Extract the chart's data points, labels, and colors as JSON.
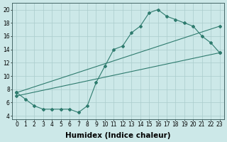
{
  "line1_x": [
    0,
    1,
    2,
    3,
    4,
    5,
    6,
    7,
    8,
    9,
    10,
    11,
    12,
    13,
    14,
    15,
    16,
    17,
    18,
    19,
    20,
    21,
    22,
    23
  ],
  "line1_y": [
    7.5,
    6.5,
    5.5,
    5.0,
    5.0,
    5.0,
    5.0,
    4.5,
    5.5,
    9.0,
    11.5,
    14.0,
    14.5,
    16.5,
    17.5,
    19.5,
    20.0,
    19.0,
    18.5,
    18.0,
    17.5,
    16.0,
    15.0,
    13.5
  ],
  "line2_x": [
    0,
    23
  ],
  "line2_y": [
    7.5,
    17.5
  ],
  "line3_x": [
    0,
    23
  ],
  "line3_y": [
    7.0,
    13.5
  ],
  "color": "#2e7b6e",
  "bg_color": "#cce8e8",
  "grid_color": "#aacccc",
  "xlabel": "Humidex (Indice chaleur)",
  "xlim": [
    -0.5,
    23.5
  ],
  "ylim": [
    3.5,
    21
  ],
  "xticks": [
    0,
    1,
    2,
    3,
    4,
    5,
    6,
    7,
    8,
    9,
    10,
    11,
    12,
    13,
    14,
    15,
    16,
    17,
    18,
    19,
    20,
    21,
    22,
    23
  ],
  "yticks": [
    4,
    6,
    8,
    10,
    12,
    14,
    16,
    18,
    20
  ],
  "tick_fontsize": 5.5,
  "xlabel_fontsize": 7.5,
  "marker": "D",
  "markersize": 2.0,
  "linewidth": 0.8
}
